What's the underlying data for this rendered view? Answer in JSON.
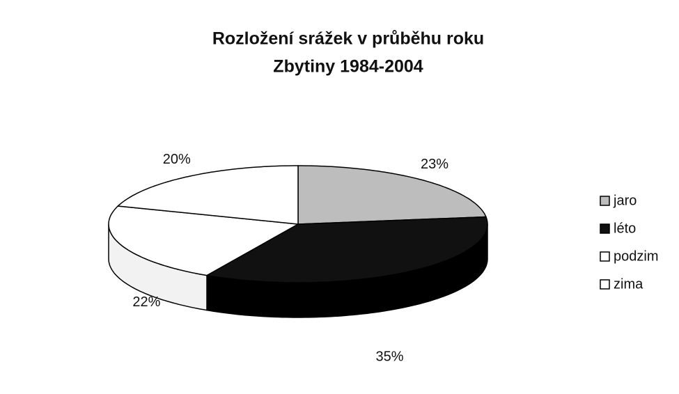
{
  "chart_data": {
    "type": "pie3d",
    "title": "Rozložení srážek v průběhu roku",
    "subtitle": "Zbytiny 1984-2004",
    "categories": [
      "jaro",
      "léto",
      "podzim",
      "zima"
    ],
    "values": [
      23,
      35,
      22,
      20
    ],
    "value_labels": [
      "23%",
      "35%",
      "22%",
      "20%"
    ],
    "colors": [
      "#bdbdbd",
      "#111111",
      "#ffffff",
      "#ffffff"
    ],
    "legend": "right"
  }
}
